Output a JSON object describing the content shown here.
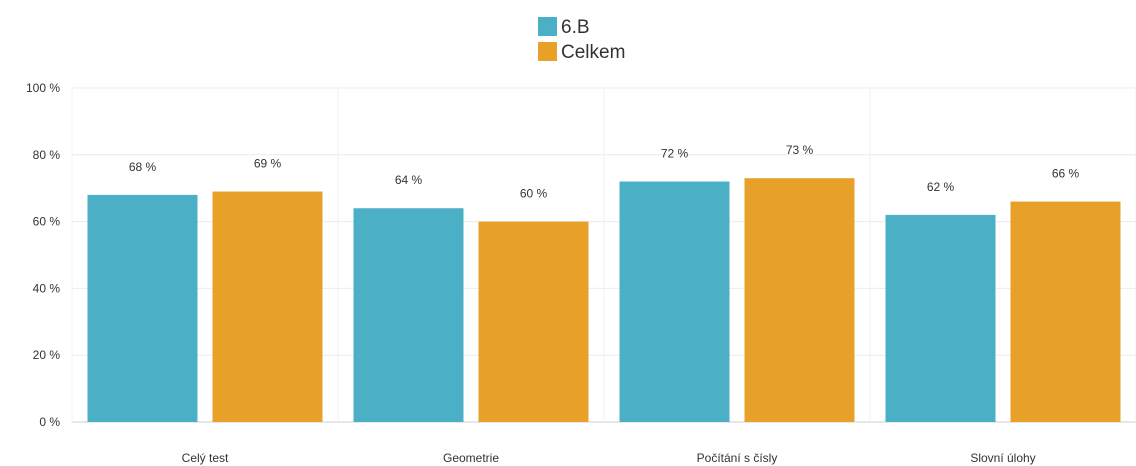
{
  "chart_data": {
    "type": "bar",
    "categories": [
      "Celý test",
      "Geometrie",
      "Počítání s čísly",
      "Slovní úlohy"
    ],
    "series": [
      {
        "name": "6.B",
        "values": [
          68,
          64,
          72,
          62
        ],
        "labels": [
          "68 %",
          "64 %",
          "72 %",
          "62 %"
        ],
        "color": "#4bafc5"
      },
      {
        "name": "Celkem",
        "values": [
          69,
          60,
          73,
          66
        ],
        "labels": [
          "69 %",
          "60 %",
          "73 %",
          "66 %"
        ],
        "color": "#e8a128"
      }
    ],
    "ylim": [
      0,
      100
    ],
    "yticks": [
      0,
      20,
      40,
      60,
      80,
      100
    ],
    "ytick_labels": [
      "0 %",
      "20 %",
      "40 %",
      "60 %",
      "80 %",
      "100 %"
    ],
    "grid": true,
    "legend_position": "top-center"
  }
}
